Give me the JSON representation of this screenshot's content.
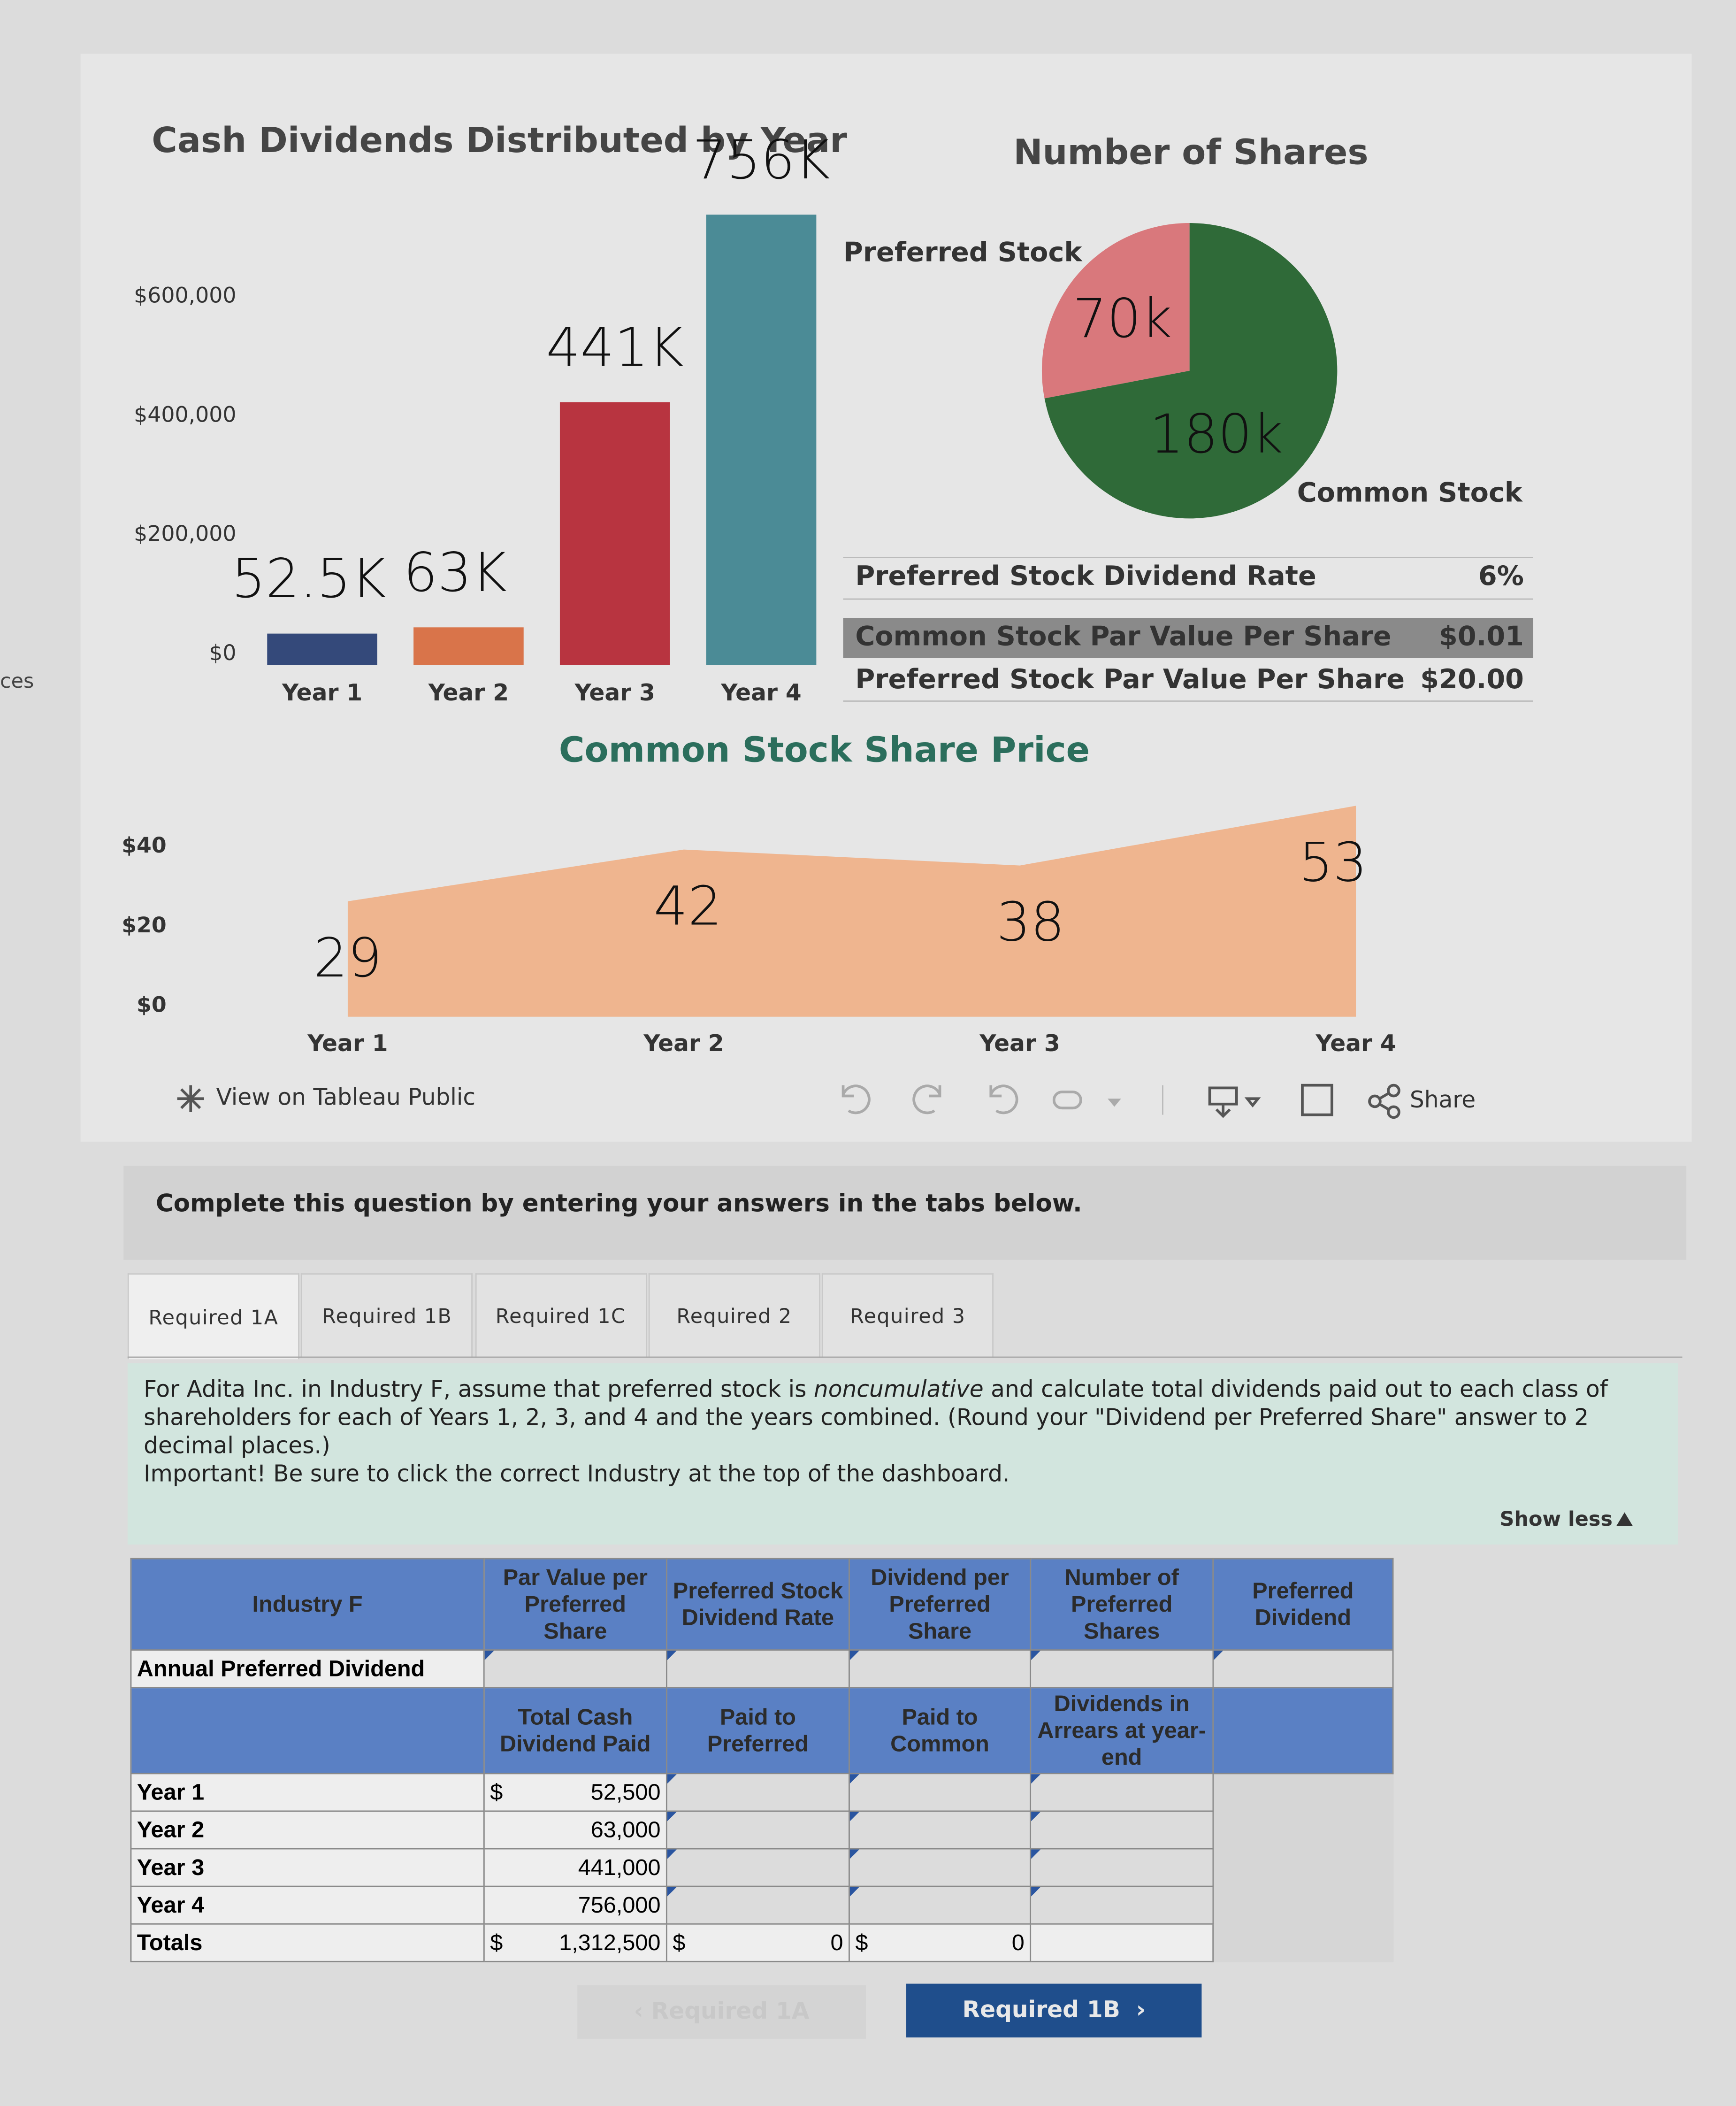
{
  "chart_data": [
    {
      "type": "bar",
      "title": "Cash Dividends Distributed by Year",
      "categories": [
        "Year 1",
        "Year 2",
        "Year 3",
        "Year 4"
      ],
      "values": [
        52500,
        63000,
        441000,
        756000
      ],
      "value_labels": [
        "52.5K",
        "63K",
        "441K",
        "756K"
      ],
      "colors": [
        "#34497a",
        "#d9744a",
        "#b83440",
        "#4b8b96"
      ],
      "ylim": [
        0,
        760000
      ],
      "yticks": [
        {
          "value": 0,
          "label": "$0"
        },
        {
          "value": 200000,
          "label": "$200,000"
        },
        {
          "value": 400000,
          "label": "$400,000"
        },
        {
          "value": 600000,
          "label": "$600,000"
        }
      ]
    },
    {
      "type": "pie",
      "title": "Number of Shares",
      "categories": [
        "Preferred Stock",
        "Common Stock"
      ],
      "values": [
        70000,
        180000
      ],
      "value_labels": [
        "70k",
        "180k"
      ],
      "colors": [
        "#d9787c",
        "#2f6a38"
      ]
    },
    {
      "type": "area",
      "title": "Common Stock Share Price",
      "categories": [
        "Year 1",
        "Year 2",
        "Year 3",
        "Year 4"
      ],
      "values": [
        29,
        42,
        38,
        53
      ],
      "color": "#efb58f",
      "ylim": [
        0,
        55
      ],
      "yticks": [
        {
          "value": 0,
          "label": "$0"
        },
        {
          "value": 20,
          "label": "$20"
        },
        {
          "value": 40,
          "label": "$40"
        }
      ]
    }
  ],
  "info_table": {
    "rows": [
      [
        "Preferred Stock Dividend Rate",
        "6%"
      ],
      [
        "Common Stock Par Value Per Share",
        "$0.01"
      ],
      [
        "Preferred Stock Par Value Per Share",
        "$20.00"
      ]
    ]
  },
  "toolbar": {
    "tableau": "View on Tableau Public",
    "share": "Share"
  },
  "question": {
    "instruction": "Complete this question by entering your answers in the tabs below.",
    "tabs": [
      "Required 1A",
      "Required 1B",
      "Required 1C",
      "Required 2",
      "Required 3"
    ],
    "description": {
      "before": "For Adita Inc. in Industry F, assume that preferred stock is ",
      "emphasis": "noncumulative",
      "after": " and calculate total dividends paid out to each class of shareholders for each of Years 1, 2, 3, and 4 and the years combined. (Round your \"Dividend per Preferred Share\" answer to 2 decimal places.)"
    },
    "important": "Important! Be sure to click the correct Industry at the top of the dashboard.",
    "show_less": "Show less",
    "table": {
      "header1": [
        "Industry F",
        "Par Value per Preferred Share",
        "Preferred Stock Dividend Rate",
        "Dividend per Preferred Share",
        "Number of Preferred Shares",
        "Preferred Dividend"
      ],
      "annual_row": "Annual Preferred Dividend",
      "header2": [
        "Total Cash Dividend Paid",
        "Paid to Preferred",
        "Paid to Common",
        "Dividends in Arrears at year-end"
      ],
      "rows": [
        {
          "label": "Year 1",
          "currency": "$",
          "total": "52,500"
        },
        {
          "label": "Year 2",
          "total": "63,000"
        },
        {
          "label": "Year 3",
          "total": "441,000"
        },
        {
          "label": "Year 4",
          "total": "756,000"
        }
      ],
      "totals": {
        "label": "Totals",
        "currency": "$",
        "total": "1,312,500",
        "preferred_currency": "$",
        "preferred": "0",
        "common_currency": "$",
        "common": "0"
      }
    },
    "buttons": {
      "previous": "Required 1A",
      "next": "Required 1B"
    }
  }
}
